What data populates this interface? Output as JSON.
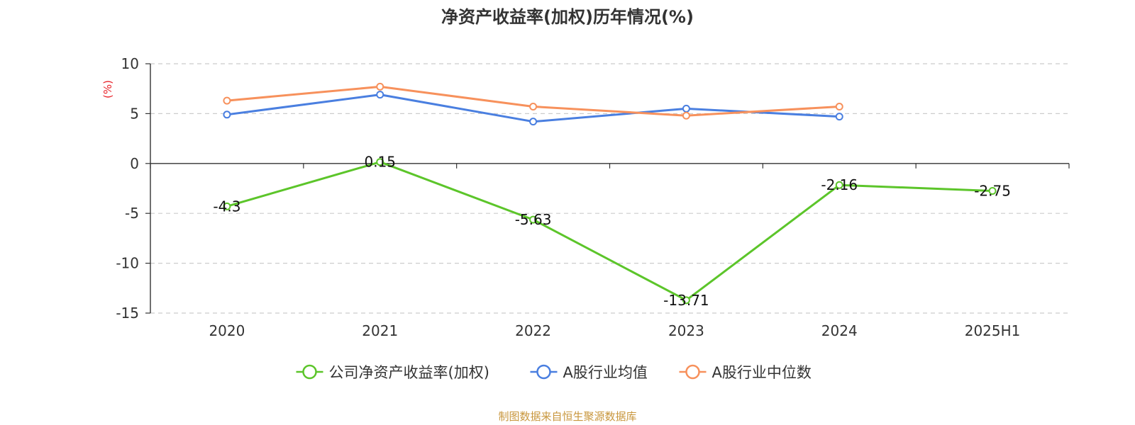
{
  "chart_data": {
    "type": "line",
    "title": "净资产收益率(加权)历年情况(%)",
    "ylabel": "(%)",
    "categories": [
      "2020",
      "2021",
      "2022",
      "2023",
      "2024",
      "2025H1"
    ],
    "ylim": [
      -15,
      10
    ],
    "yticks": [
      10,
      5,
      0,
      -5,
      -10,
      -15
    ],
    "grid": true,
    "legend_position": "bottom",
    "series": [
      {
        "name": "公司净资产收益率(加权)",
        "color": "#5cc52a",
        "values": [
          -4.3,
          0.15,
          -5.63,
          -13.71,
          -2.16,
          -2.75
        ],
        "labels": [
          "-4.3",
          "0.15",
          "-5.63",
          "-13.71",
          "-2.16",
          "-2.75"
        ]
      },
      {
        "name": "A股行业均值",
        "color": "#4a7fe0",
        "values": [
          4.9,
          6.9,
          4.2,
          5.5,
          4.7,
          null
        ]
      },
      {
        "name": "A股行业中位数",
        "color": "#f7915c",
        "values": [
          6.3,
          7.7,
          5.7,
          4.8,
          5.7,
          null
        ]
      }
    ],
    "colors": {
      "ylabel": "#e8232a",
      "axis": "#333333",
      "grid": "#cccccc"
    }
  },
  "footer": {
    "source": "制图数据来自恒生聚源数据库"
  }
}
